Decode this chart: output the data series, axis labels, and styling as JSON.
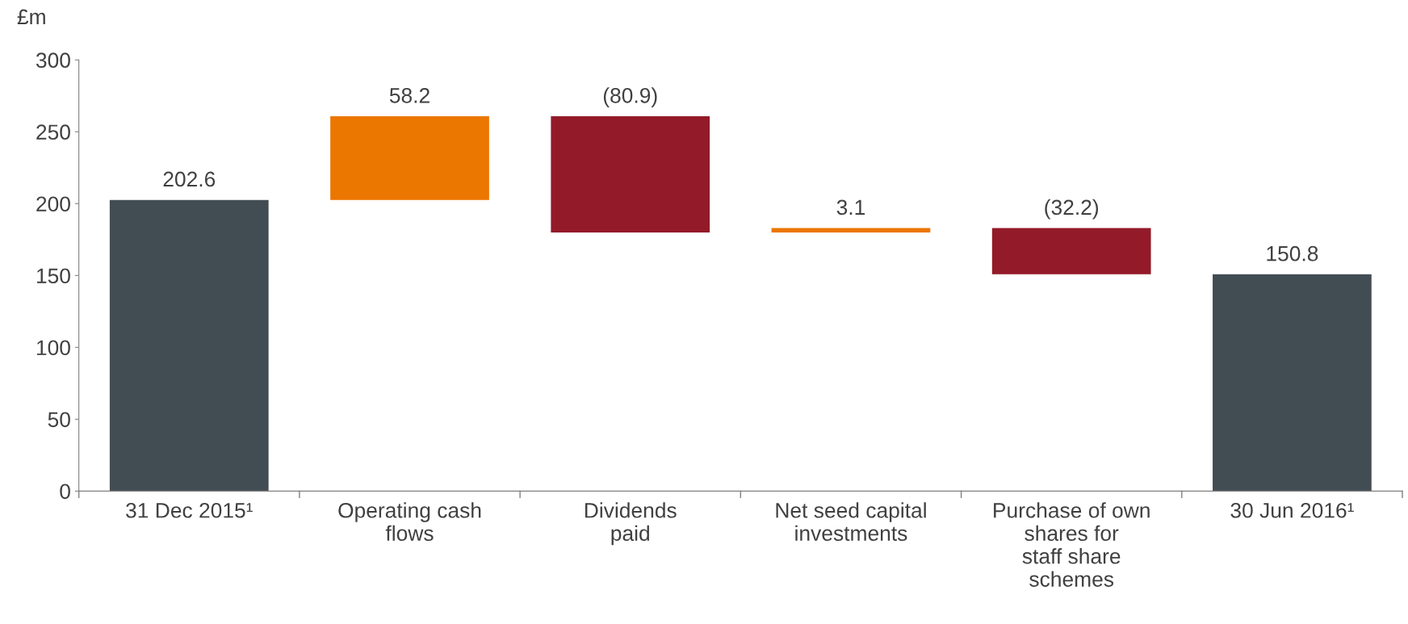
{
  "chart_data": {
    "type": "bar",
    "ylabel": "£m",
    "categories": [
      "31 Dec 2015¹",
      "Operating cash\nflows",
      "Dividends\npaid",
      "Net seed capital\ninvestments",
      "Purchase of own\nshares for\nstaff share\nschemes",
      "30 Jun 2016¹"
    ],
    "values": [
      202.6,
      58.2,
      -80.9,
      3.1,
      -32.2,
      150.8
    ],
    "base": [
      0,
      202.6,
      260.8,
      179.9,
      183.0,
      0
    ],
    "colors": [
      "#424c53",
      "#eb7600",
      "#931a29",
      "#eb7600",
      "#931a29",
      "#424c53"
    ],
    "value_labels": [
      "202.6",
      "58.2",
      "(80.9)",
      "3.1",
      "(32.2)",
      "150.8"
    ],
    "ylim": [
      0,
      300
    ],
    "yticks": [
      0,
      50,
      100,
      150,
      200,
      250,
      300
    ],
    "grid": false
  }
}
